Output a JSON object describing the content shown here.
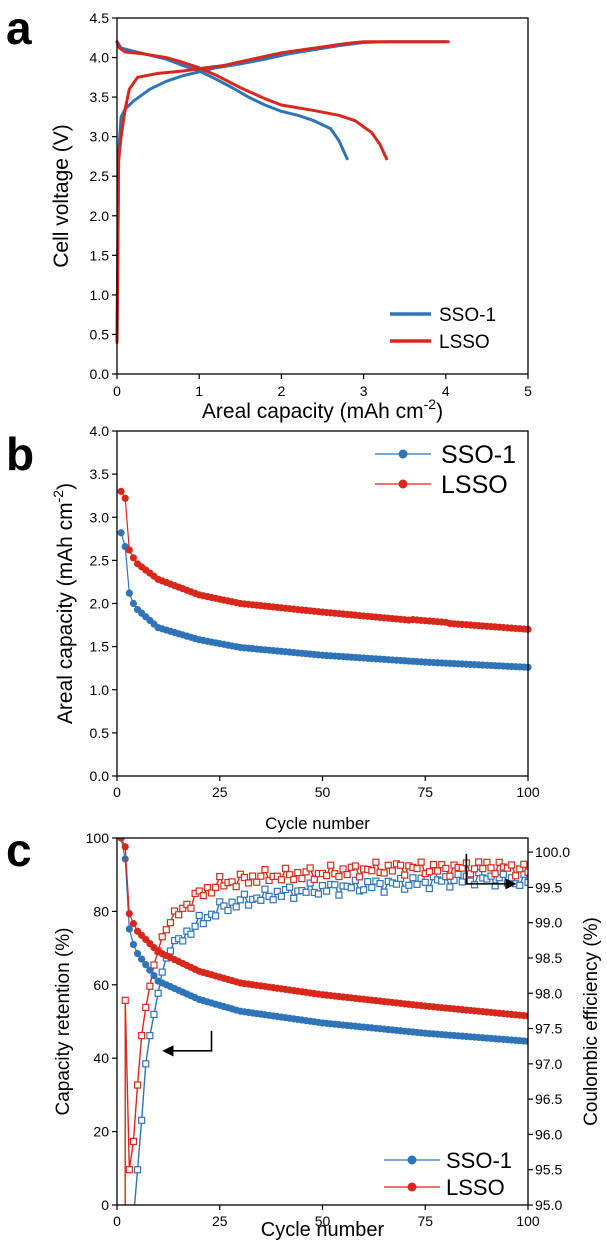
{
  "colors": {
    "blue": "#2f73b8",
    "red": "#d8281c"
  },
  "chart_data": [
    {
      "panel": "a",
      "type": "line",
      "xlabel": "Areal capacity (mAh cm",
      "xlabel_sup": "-2",
      "xlabel_close": ")",
      "ylabel": "Cell voltage (V)",
      "xlim": [
        0,
        5
      ],
      "ylim": [
        0,
        4.5
      ],
      "xticks": [
        0,
        1,
        2,
        3,
        4,
        5
      ],
      "xtick_labels": [
        "0",
        "1",
        "2",
        "3",
        "4",
        "5"
      ],
      "yticks": [
        0,
        0.5,
        1,
        1.5,
        2,
        2.5,
        3,
        3.5,
        4,
        4.5
      ],
      "ytick_labels": [
        "0.0",
        "0.5",
        "1.0",
        "1.5",
        "2.0",
        "2.5",
        "3.0",
        "3.5",
        "4.0",
        "4.5"
      ],
      "legend_position": "bottom-right",
      "series": [
        {
          "name": "SSO-1",
          "color": "#2f73b8",
          "charge": [
            [
              0.0,
              0.4
            ],
            [
              0.01,
              1.5
            ],
            [
              0.02,
              2.8
            ],
            [
              0.05,
              3.25
            ],
            [
              0.1,
              3.35
            ],
            [
              0.2,
              3.45
            ],
            [
              0.4,
              3.6
            ],
            [
              0.6,
              3.7
            ],
            [
              0.8,
              3.77
            ],
            [
              1.0,
              3.82
            ],
            [
              1.2,
              3.87
            ],
            [
              1.5,
              3.92
            ],
            [
              1.8,
              3.98
            ],
            [
              2.1,
              4.05
            ],
            [
              2.4,
              4.1
            ],
            [
              2.7,
              4.15
            ],
            [
              3.0,
              4.19
            ],
            [
              3.3,
              4.2
            ],
            [
              4.0,
              4.2
            ]
          ],
          "discharge": [
            [
              0.0,
              4.2
            ],
            [
              0.05,
              4.12
            ],
            [
              0.2,
              4.08
            ],
            [
              0.4,
              4.03
            ],
            [
              0.6,
              3.98
            ],
            [
              0.8,
              3.9
            ],
            [
              1.0,
              3.83
            ],
            [
              1.2,
              3.73
            ],
            [
              1.4,
              3.62
            ],
            [
              1.6,
              3.5
            ],
            [
              1.8,
              3.4
            ],
            [
              2.0,
              3.32
            ],
            [
              2.2,
              3.27
            ],
            [
              2.4,
              3.2
            ],
            [
              2.6,
              3.1
            ],
            [
              2.7,
              2.95
            ],
            [
              2.8,
              2.72
            ]
          ]
        },
        {
          "name": "LSSO",
          "color": "#d8281c",
          "charge": [
            [
              0.0,
              0.4
            ],
            [
              0.01,
              1.5
            ],
            [
              0.02,
              2.7
            ],
            [
              0.05,
              3.0
            ],
            [
              0.1,
              3.35
            ],
            [
              0.15,
              3.6
            ],
            [
              0.25,
              3.75
            ],
            [
              0.5,
              3.8
            ],
            [
              0.8,
              3.83
            ],
            [
              1.0,
              3.86
            ],
            [
              1.3,
              3.9
            ],
            [
              1.6,
              3.97
            ],
            [
              2.0,
              4.06
            ],
            [
              2.4,
              4.12
            ],
            [
              2.8,
              4.18
            ],
            [
              3.0,
              4.2
            ],
            [
              3.5,
              4.2
            ],
            [
              4.03,
              4.2
            ]
          ],
          "discharge": [
            [
              0.0,
              4.2
            ],
            [
              0.03,
              4.12
            ],
            [
              0.1,
              4.07
            ],
            [
              0.3,
              4.05
            ],
            [
              0.6,
              4.0
            ],
            [
              0.8,
              3.94
            ],
            [
              1.0,
              3.87
            ],
            [
              1.2,
              3.78
            ],
            [
              1.5,
              3.62
            ],
            [
              1.8,
              3.48
            ],
            [
              2.0,
              3.4
            ],
            [
              2.4,
              3.33
            ],
            [
              2.7,
              3.27
            ],
            [
              2.9,
              3.2
            ],
            [
              3.1,
              3.05
            ],
            [
              3.2,
              2.9
            ],
            [
              3.28,
              2.72
            ]
          ]
        }
      ]
    },
    {
      "panel": "b",
      "type": "line",
      "xlabel": "Cycle number",
      "ylabel": "Areal capacity (mAh cm",
      "ylabel_sup": "-2",
      "ylabel_close": ")",
      "xlim": [
        0,
        100
      ],
      "ylim": [
        0,
        4
      ],
      "xticks": [
        0,
        25,
        50,
        75,
        100
      ],
      "xtick_labels": [
        "0",
        "25",
        "50",
        "75",
        "100"
      ],
      "yticks": [
        0,
        0.5,
        1,
        1.5,
        2,
        2.5,
        3,
        3.5,
        4
      ],
      "ytick_labels": [
        "0.0",
        "0.5",
        "1.0",
        "1.5",
        "2.0",
        "2.5",
        "3.0",
        "3.5",
        "4.0"
      ],
      "legend_position": "top-right",
      "series": [
        {
          "name": "SSO-1",
          "color": "#2f73b8",
          "initial": [
            2.82,
            2.66,
            2.12,
            2.0,
            1.93
          ],
          "anchors": [
            [
              5,
              1.93
            ],
            [
              10,
              1.72
            ],
            [
              20,
              1.58
            ],
            [
              30,
              1.49
            ],
            [
              50,
              1.4
            ],
            [
              75,
              1.32
            ],
            [
              100,
              1.26
            ]
          ]
        },
        {
          "name": "LSSO",
          "color": "#d8281c",
          "initial": [
            3.3,
            3.22,
            2.62,
            2.53,
            2.46
          ],
          "anchors": [
            [
              5,
              2.46
            ],
            [
              10,
              2.28
            ],
            [
              20,
              2.1
            ],
            [
              30,
              2.0
            ],
            [
              50,
              1.9
            ],
            [
              75,
              1.79
            ],
            [
              100,
              1.7
            ]
          ]
        }
      ]
    },
    {
      "panel": "c",
      "type": "line",
      "xlabel": "Cycle number",
      "ylabel": "Capacity retention (%)",
      "y2label": "Coulombic efficiency (%)",
      "xlim": [
        0,
        100
      ],
      "ylim": [
        0,
        100
      ],
      "y2lim": [
        95,
        100.2
      ],
      "xticks": [
        0,
        25,
        50,
        75,
        100
      ],
      "xtick_labels": [
        "0",
        "25",
        "50",
        "75",
        "100"
      ],
      "yticks": [
        0,
        20,
        40,
        60,
        80,
        100
      ],
      "ytick_labels": [
        "0",
        "20",
        "40",
        "60",
        "80",
        "100"
      ],
      "y2ticks": [
        95,
        95.5,
        96,
        96.5,
        97,
        97.5,
        98,
        98.5,
        99,
        99.5,
        100
      ],
      "y2tick_labels": [
        "95.0",
        "95.5",
        "96.0",
        "96.5",
        "97.0",
        "97.5",
        "98.0",
        "98.5",
        "99.0",
        "99.5",
        "100.0"
      ],
      "legend_position": "bottom-right",
      "series": [
        {
          "name": "SSO-1",
          "color": "#2f73b8",
          "retention_initial": [
            100,
            94.3,
            75.2,
            71.0,
            68.5
          ],
          "retention_anchors": [
            [
              5,
              68.5
            ],
            [
              10,
              61.0
            ],
            [
              20,
              56.0
            ],
            [
              30,
              52.8
            ],
            [
              50,
              49.6
            ],
            [
              75,
              46.8
            ],
            [
              100,
              44.6
            ]
          ],
          "ce_initial": [
            [
              4,
              94.8
            ],
            [
              5,
              95.5
            ],
            [
              6,
              96.2
            ],
            [
              7,
              97.0
            ],
            [
              8,
              97.4
            ],
            [
              9,
              97.7
            ],
            [
              10,
              98.0
            ],
            [
              11,
              98.3
            ],
            [
              12,
              98.5
            ],
            [
              13,
              98.6
            ]
          ],
          "ce_anchors": [
            [
              13,
              98.6
            ],
            [
              16,
              98.8
            ],
            [
              20,
              99.0
            ],
            [
              25,
              99.2
            ],
            [
              30,
              99.3
            ],
            [
              40,
              99.42
            ],
            [
              50,
              99.48
            ],
            [
              60,
              99.52
            ],
            [
              70,
              99.56
            ],
            [
              80,
              99.6
            ],
            [
              90,
              99.63
            ],
            [
              100,
              99.58
            ]
          ]
        },
        {
          "name": "LSSO",
          "color": "#d8281c",
          "retention_initial": [
            100,
            97.6,
            79.4,
            76.7,
            74.6
          ],
          "retention_anchors": [
            [
              5,
              74.6
            ],
            [
              10,
              69.0
            ],
            [
              20,
              63.7
            ],
            [
              30,
              60.5
            ],
            [
              50,
              57.3
            ],
            [
              75,
              54.2
            ],
            [
              100,
              51.5
            ]
          ],
          "ce_initial": [
            [
              2,
              97.9
            ],
            [
              3,
              95.5
            ],
            [
              4,
              95.9
            ],
            [
              5,
              96.7
            ],
            [
              6,
              97.4
            ],
            [
              7,
              97.8
            ],
            [
              8,
              98.1
            ],
            [
              9,
              98.4
            ],
            [
              10,
              98.6
            ],
            [
              11,
              98.8
            ],
            [
              12,
              98.9
            ],
            [
              13,
              99.0
            ]
          ],
          "ce_anchors": [
            [
              13,
              99.0
            ],
            [
              16,
              99.2
            ],
            [
              20,
              99.4
            ],
            [
              25,
              99.55
            ],
            [
              30,
              99.6
            ],
            [
              35,
              99.65
            ],
            [
              50,
              99.7
            ],
            [
              60,
              99.75
            ],
            [
              70,
              99.78
            ],
            [
              80,
              99.76
            ],
            [
              90,
              99.8
            ],
            [
              100,
              99.75
            ]
          ]
        }
      ],
      "arrow_left": {
        "x": 23,
        "y": 42
      },
      "arrow_right": {
        "x": 85,
        "y": 87.5
      }
    }
  ]
}
